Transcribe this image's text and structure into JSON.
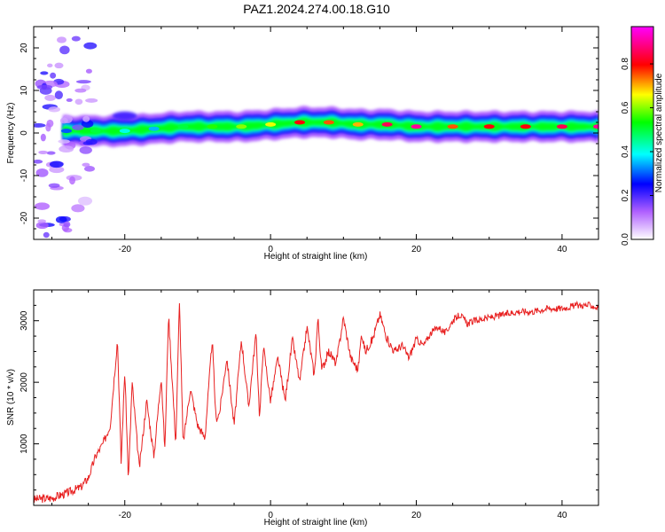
{
  "title": "PAZ1.2024.274.00.18.G10",
  "colors": {
    "snr_line": "#e82020",
    "frame": "#000000",
    "colorbar": [
      "#ffffff",
      "#8000ff",
      "#0000ff",
      "#00ffff",
      "#00ff00",
      "#ffff00",
      "#ff0000",
      "#ff00ff"
    ]
  },
  "chart_data": [
    {
      "type": "heatmap",
      "xlabel": "Height of straight line (km)",
      "ylabel": "Frequency (Hz)",
      "xlim": [
        -32.5,
        45
      ],
      "ylim": [
        -25,
        25
      ],
      "x_ticks": [
        -20,
        0,
        20,
        40
      ],
      "y_ticks": [
        -20,
        -10,
        0,
        10,
        20
      ],
      "colorbar": {
        "label": "Normalized spectral amplitude",
        "range": [
          0,
          0.97
        ],
        "ticks": [
          "0.0",
          "0.2",
          "0.4",
          "0.6",
          "0.8"
        ],
        "colormap": "rainbow (white-purple-blue-cyan-green-yellow-red-magenta)"
      },
      "ridge": {
        "description": "Main spectral ridge near +1 to +3 Hz from about -28 km to 45 km; diffuse noise for heights below -25 km",
        "x": [
          -28,
          -24,
          -20,
          -16,
          -12,
          -8,
          -4,
          0,
          4,
          8,
          12,
          16,
          20,
          25,
          30,
          35,
          40,
          45
        ],
        "frequency": [
          0.5,
          0.5,
          0.5,
          1.0,
          1.5,
          1.5,
          1.5,
          2.0,
          2.5,
          2.5,
          2.0,
          2.0,
          1.5,
          1.5,
          1.5,
          1.5,
          1.5,
          1.5
        ],
        "amplitude": [
          0.3,
          0.5,
          0.4,
          0.35,
          0.5,
          0.55,
          0.6,
          0.65,
          0.8,
          0.75,
          0.7,
          0.85,
          0.9,
          0.75,
          0.8,
          0.8,
          0.85,
          0.9
        ]
      }
    },
    {
      "type": "line",
      "xlabel": "Height of straight line (km)",
      "ylabel": "SNR (10 * v/v)",
      "xlim": [
        -32.5,
        45
      ],
      "ylim": [
        0,
        3500
      ],
      "x_ticks": [
        -20,
        0,
        20,
        40
      ],
      "y_ticks": [
        1000,
        2000,
        3000
      ],
      "series": [
        {
          "x": [
            -32.5,
            -30,
            -28,
            -26,
            -25,
            -24,
            -23,
            -22,
            -21,
            -20.5,
            -20,
            -19.5,
            -19,
            -18,
            -17,
            -16,
            -15,
            -14.5,
            -14,
            -13,
            -12.5,
            -12,
            -11,
            -10,
            -9,
            -8,
            -7.5,
            -7,
            -6,
            -5,
            -4,
            -3,
            -2,
            -1.5,
            -1,
            0,
            1,
            2,
            3,
            4,
            5,
            6,
            6.5,
            7,
            8,
            9,
            10,
            11,
            12,
            12.5,
            13,
            14,
            15,
            16,
            17,
            18,
            19,
            20,
            21,
            22,
            23,
            24,
            25,
            26,
            27,
            28,
            30,
            32,
            34,
            36,
            38,
            40,
            42,
            44,
            45
          ],
          "y": [
            100,
            120,
            200,
            300,
            450,
            800,
            1000,
            1300,
            2700,
            700,
            2200,
            400,
            2000,
            600,
            1700,
            800,
            2100,
            900,
            3100,
            1000,
            3350,
            1000,
            1900,
            1300,
            1100,
            2700,
            1400,
            1500,
            2400,
            1300,
            2700,
            1600,
            2800,
            1400,
            2600,
            1700,
            2400,
            1700,
            2700,
            2000,
            2900,
            2100,
            3050,
            2200,
            2500,
            2300,
            3050,
            2400,
            2200,
            2800,
            2500,
            2700,
            3100,
            2700,
            2500,
            2600,
            2400,
            2700,
            2600,
            2800,
            2900,
            2800,
            3000,
            3100,
            2950,
            3000,
            3050,
            3100,
            3150,
            3150,
            3200,
            3200,
            3250,
            3250,
            3200
          ]
        }
      ]
    }
  ]
}
